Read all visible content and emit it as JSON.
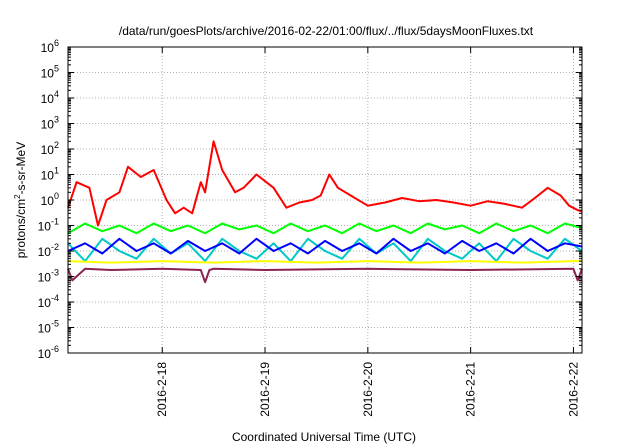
{
  "chart_data": {
    "type": "line",
    "title": "/data/run/goesPlots/archive/2016-02-22/01:00/flux/../flux/5daysMoonFluxes.txt",
    "xlabel": "Coordinated Universal Time (UTC)",
    "ylabel": {
      "prefix": "protons/cm",
      "sup": "2",
      "suffix": "-s-sr-MeV"
    },
    "yscale": "log",
    "ylim": [
      1e-06,
      1000000.0
    ],
    "xlim": [
      "2016-02-17 02:00",
      "2016-02-22 02:00"
    ],
    "grid": true,
    "legend": "none",
    "y_ticks": [
      {
        "value": 1e-06,
        "base": "10",
        "exp": "-6"
      },
      {
        "value": 1e-05,
        "base": "10",
        "exp": "-5"
      },
      {
        "value": 0.0001,
        "base": "10",
        "exp": "-4"
      },
      {
        "value": 0.001,
        "base": "10",
        "exp": "-3"
      },
      {
        "value": 0.01,
        "base": "10",
        "exp": "-2"
      },
      {
        "value": 0.1,
        "base": "10",
        "exp": "-1"
      },
      {
        "value": 1,
        "base": "10",
        "exp": "0"
      },
      {
        "value": 10.0,
        "base": "10",
        "exp": "1"
      },
      {
        "value": 100.0,
        "base": "10",
        "exp": "2"
      },
      {
        "value": 1000.0,
        "base": "10",
        "exp": "3"
      },
      {
        "value": 10000.0,
        "base": "10",
        "exp": "4"
      },
      {
        "value": 100000.0,
        "base": "10",
        "exp": "5"
      },
      {
        "value": 1000000.0,
        "base": "10",
        "exp": "6"
      }
    ],
    "x_ticks": [
      {
        "value": "2016-02-18 00:00",
        "label": "2016-2-18"
      },
      {
        "value": "2016-02-19 00:00",
        "label": "2016-2-19"
      },
      {
        "value": "2016-02-20 00:00",
        "label": "2016-2-20"
      },
      {
        "value": "2016-02-21 00:00",
        "label": "2016-2-21"
      },
      {
        "value": "2016-02-22 00:00",
        "label": "2016-2-22"
      }
    ],
    "series": [
      {
        "color": "#ff0000",
        "x": [
          "2016-02-17 02:00",
          "2016-02-17 04:00",
          "2016-02-17 07:00",
          "2016-02-17 09:00",
          "2016-02-17 11:00",
          "2016-02-17 14:00",
          "2016-02-17 16:00",
          "2016-02-17 19:00",
          "2016-02-17 22:00",
          "2016-02-18 01:00",
          "2016-02-18 03:00",
          "2016-02-18 05:00",
          "2016-02-18 07:00",
          "2016-02-18 09:00",
          "2016-02-18 10:00",
          "2016-02-18 12:00",
          "2016-02-18 14:00",
          "2016-02-18 17:00",
          "2016-02-18 19:00",
          "2016-02-18 22:00",
          "2016-02-19 02:00",
          "2016-02-19 05:00",
          "2016-02-19 08:00",
          "2016-02-19 11:00",
          "2016-02-19 13:00",
          "2016-02-19 15:00",
          "2016-02-19 17:00",
          "2016-02-19 20:00",
          "2016-02-20 00:00",
          "2016-02-20 04:00",
          "2016-02-20 08:00",
          "2016-02-20 12:00",
          "2016-02-20 16:00",
          "2016-02-20 20:00",
          "2016-02-21 00:00",
          "2016-02-21 04:00",
          "2016-02-21 08:00",
          "2016-02-21 12:00",
          "2016-02-21 15:00",
          "2016-02-21 18:00",
          "2016-02-21 21:00",
          "2016-02-21 23:00",
          "2016-02-22 01:00",
          "2016-02-22 02:00"
        ],
        "values": [
          0.5,
          5,
          3,
          0.1,
          1,
          2,
          20,
          8,
          15,
          1,
          0.3,
          0.5,
          0.3,
          5,
          2,
          200,
          15,
          2,
          3,
          10,
          3,
          0.5,
          0.8,
          1,
          1.5,
          10,
          3,
          1.5,
          0.6,
          0.8,
          1.2,
          0.9,
          1,
          0.8,
          0.6,
          0.9,
          0.7,
          0.5,
          1.2,
          3,
          1.5,
          0.6,
          0.4,
          0.35
        ]
      },
      {
        "color": "#00ff00",
        "x": [
          "2016-02-17 02:00",
          "2016-02-17 06:00",
          "2016-02-17 10:00",
          "2016-02-17 14:00",
          "2016-02-17 18:00",
          "2016-02-17 22:00",
          "2016-02-18 02:00",
          "2016-02-18 06:00",
          "2016-02-18 10:00",
          "2016-02-18 14:00",
          "2016-02-18 18:00",
          "2016-02-18 22:00",
          "2016-02-19 02:00",
          "2016-02-19 06:00",
          "2016-02-19 10:00",
          "2016-02-19 14:00",
          "2016-02-19 18:00",
          "2016-02-19 22:00",
          "2016-02-20 02:00",
          "2016-02-20 06:00",
          "2016-02-20 10:00",
          "2016-02-20 14:00",
          "2016-02-20 18:00",
          "2016-02-20 22:00",
          "2016-02-21 02:00",
          "2016-02-21 06:00",
          "2016-02-21 10:00",
          "2016-02-21 14:00",
          "2016-02-21 18:00",
          "2016-02-21 22:00",
          "2016-02-22 02:00"
        ],
        "values": [
          0.05,
          0.12,
          0.06,
          0.1,
          0.05,
          0.12,
          0.06,
          0.1,
          0.05,
          0.12,
          0.07,
          0.1,
          0.05,
          0.12,
          0.06,
          0.1,
          0.05,
          0.12,
          0.06,
          0.1,
          0.05,
          0.12,
          0.07,
          0.1,
          0.05,
          0.12,
          0.06,
          0.1,
          0.05,
          0.12,
          0.08
        ]
      },
      {
        "color": "#00c8c8",
        "x": [
          "2016-02-17 02:00",
          "2016-02-17 06:00",
          "2016-02-17 10:00",
          "2016-02-17 14:00",
          "2016-02-17 18:00",
          "2016-02-17 22:00",
          "2016-02-18 02:00",
          "2016-02-18 06:00",
          "2016-02-18 10:00",
          "2016-02-18 14:00",
          "2016-02-18 18:00",
          "2016-02-18 22:00",
          "2016-02-19 02:00",
          "2016-02-19 06:00",
          "2016-02-19 10:00",
          "2016-02-19 14:00",
          "2016-02-19 18:00",
          "2016-02-19 22:00",
          "2016-02-20 02:00",
          "2016-02-20 06:00",
          "2016-02-20 10:00",
          "2016-02-20 14:00",
          "2016-02-20 18:00",
          "2016-02-20 22:00",
          "2016-02-21 02:00",
          "2016-02-21 06:00",
          "2016-02-21 10:00",
          "2016-02-21 14:00",
          "2016-02-21 18:00",
          "2016-02-21 22:00",
          "2016-02-22 02:00"
        ],
        "values": [
          0.02,
          0.004,
          0.03,
          0.01,
          0.005,
          0.03,
          0.008,
          0.02,
          0.004,
          0.03,
          0.01,
          0.005,
          0.02,
          0.004,
          0.03,
          0.01,
          0.005,
          0.03,
          0.008,
          0.02,
          0.004,
          0.03,
          0.01,
          0.005,
          0.02,
          0.004,
          0.03,
          0.01,
          0.005,
          0.03,
          0.01
        ]
      },
      {
        "color": "#0000ff",
        "x": [
          "2016-02-17 02:00",
          "2016-02-17 06:00",
          "2016-02-17 10:00",
          "2016-02-17 14:00",
          "2016-02-17 18:00",
          "2016-02-17 22:00",
          "2016-02-18 02:00",
          "2016-02-18 06:00",
          "2016-02-18 10:00",
          "2016-02-18 14:00",
          "2016-02-18 18:00",
          "2016-02-18 22:00",
          "2016-02-19 02:00",
          "2016-02-19 06:00",
          "2016-02-19 10:00",
          "2016-02-19 14:00",
          "2016-02-19 18:00",
          "2016-02-19 22:00",
          "2016-02-20 02:00",
          "2016-02-20 06:00",
          "2016-02-20 10:00",
          "2016-02-20 14:00",
          "2016-02-20 18:00",
          "2016-02-20 22:00",
          "2016-02-21 02:00",
          "2016-02-21 06:00",
          "2016-02-21 10:00",
          "2016-02-21 14:00",
          "2016-02-21 18:00",
          "2016-02-21 22:00",
          "2016-02-22 02:00"
        ],
        "values": [
          0.01,
          0.02,
          0.008,
          0.03,
          0.01,
          0.02,
          0.008,
          0.025,
          0.01,
          0.02,
          0.008,
          0.03,
          0.01,
          0.02,
          0.008,
          0.025,
          0.01,
          0.02,
          0.008,
          0.03,
          0.01,
          0.02,
          0.008,
          0.025,
          0.01,
          0.02,
          0.008,
          0.03,
          0.01,
          0.02,
          0.015
        ]
      },
      {
        "color": "#ffff00",
        "x": [
          "2016-02-17 02:00",
          "2016-02-17 12:00",
          "2016-02-18 00:00",
          "2016-02-18 12:00",
          "2016-02-19 00:00",
          "2016-02-19 12:00",
          "2016-02-20 00:00",
          "2016-02-20 12:00",
          "2016-02-21 00:00",
          "2016-02-21 12:00",
          "2016-02-22 00:00",
          "2016-02-22 02:00"
        ],
        "values": [
          0.004,
          0.0035,
          0.004,
          0.0035,
          0.004,
          0.0035,
          0.004,
          0.0035,
          0.004,
          0.0035,
          0.004,
          0.004
        ]
      },
      {
        "color": "#8b2252",
        "x": [
          "2016-02-17 02:00",
          "2016-02-17 03:00",
          "2016-02-17 06:00",
          "2016-02-17 12:00",
          "2016-02-18 00:00",
          "2016-02-18 09:00",
          "2016-02-18 10:00",
          "2016-02-18 11:00",
          "2016-02-18 12:00",
          "2016-02-19 00:00",
          "2016-02-20 00:00",
          "2016-02-21 00:00",
          "2016-02-22 00:00",
          "2016-02-22 01:00",
          "2016-02-22 02:00"
        ],
        "values": [
          0.002,
          0.0007,
          0.002,
          0.0018,
          0.002,
          0.0018,
          0.0006,
          0.0018,
          0.002,
          0.0018,
          0.002,
          0.0018,
          0.002,
          0.0007,
          0.002
        ]
      }
    ]
  }
}
